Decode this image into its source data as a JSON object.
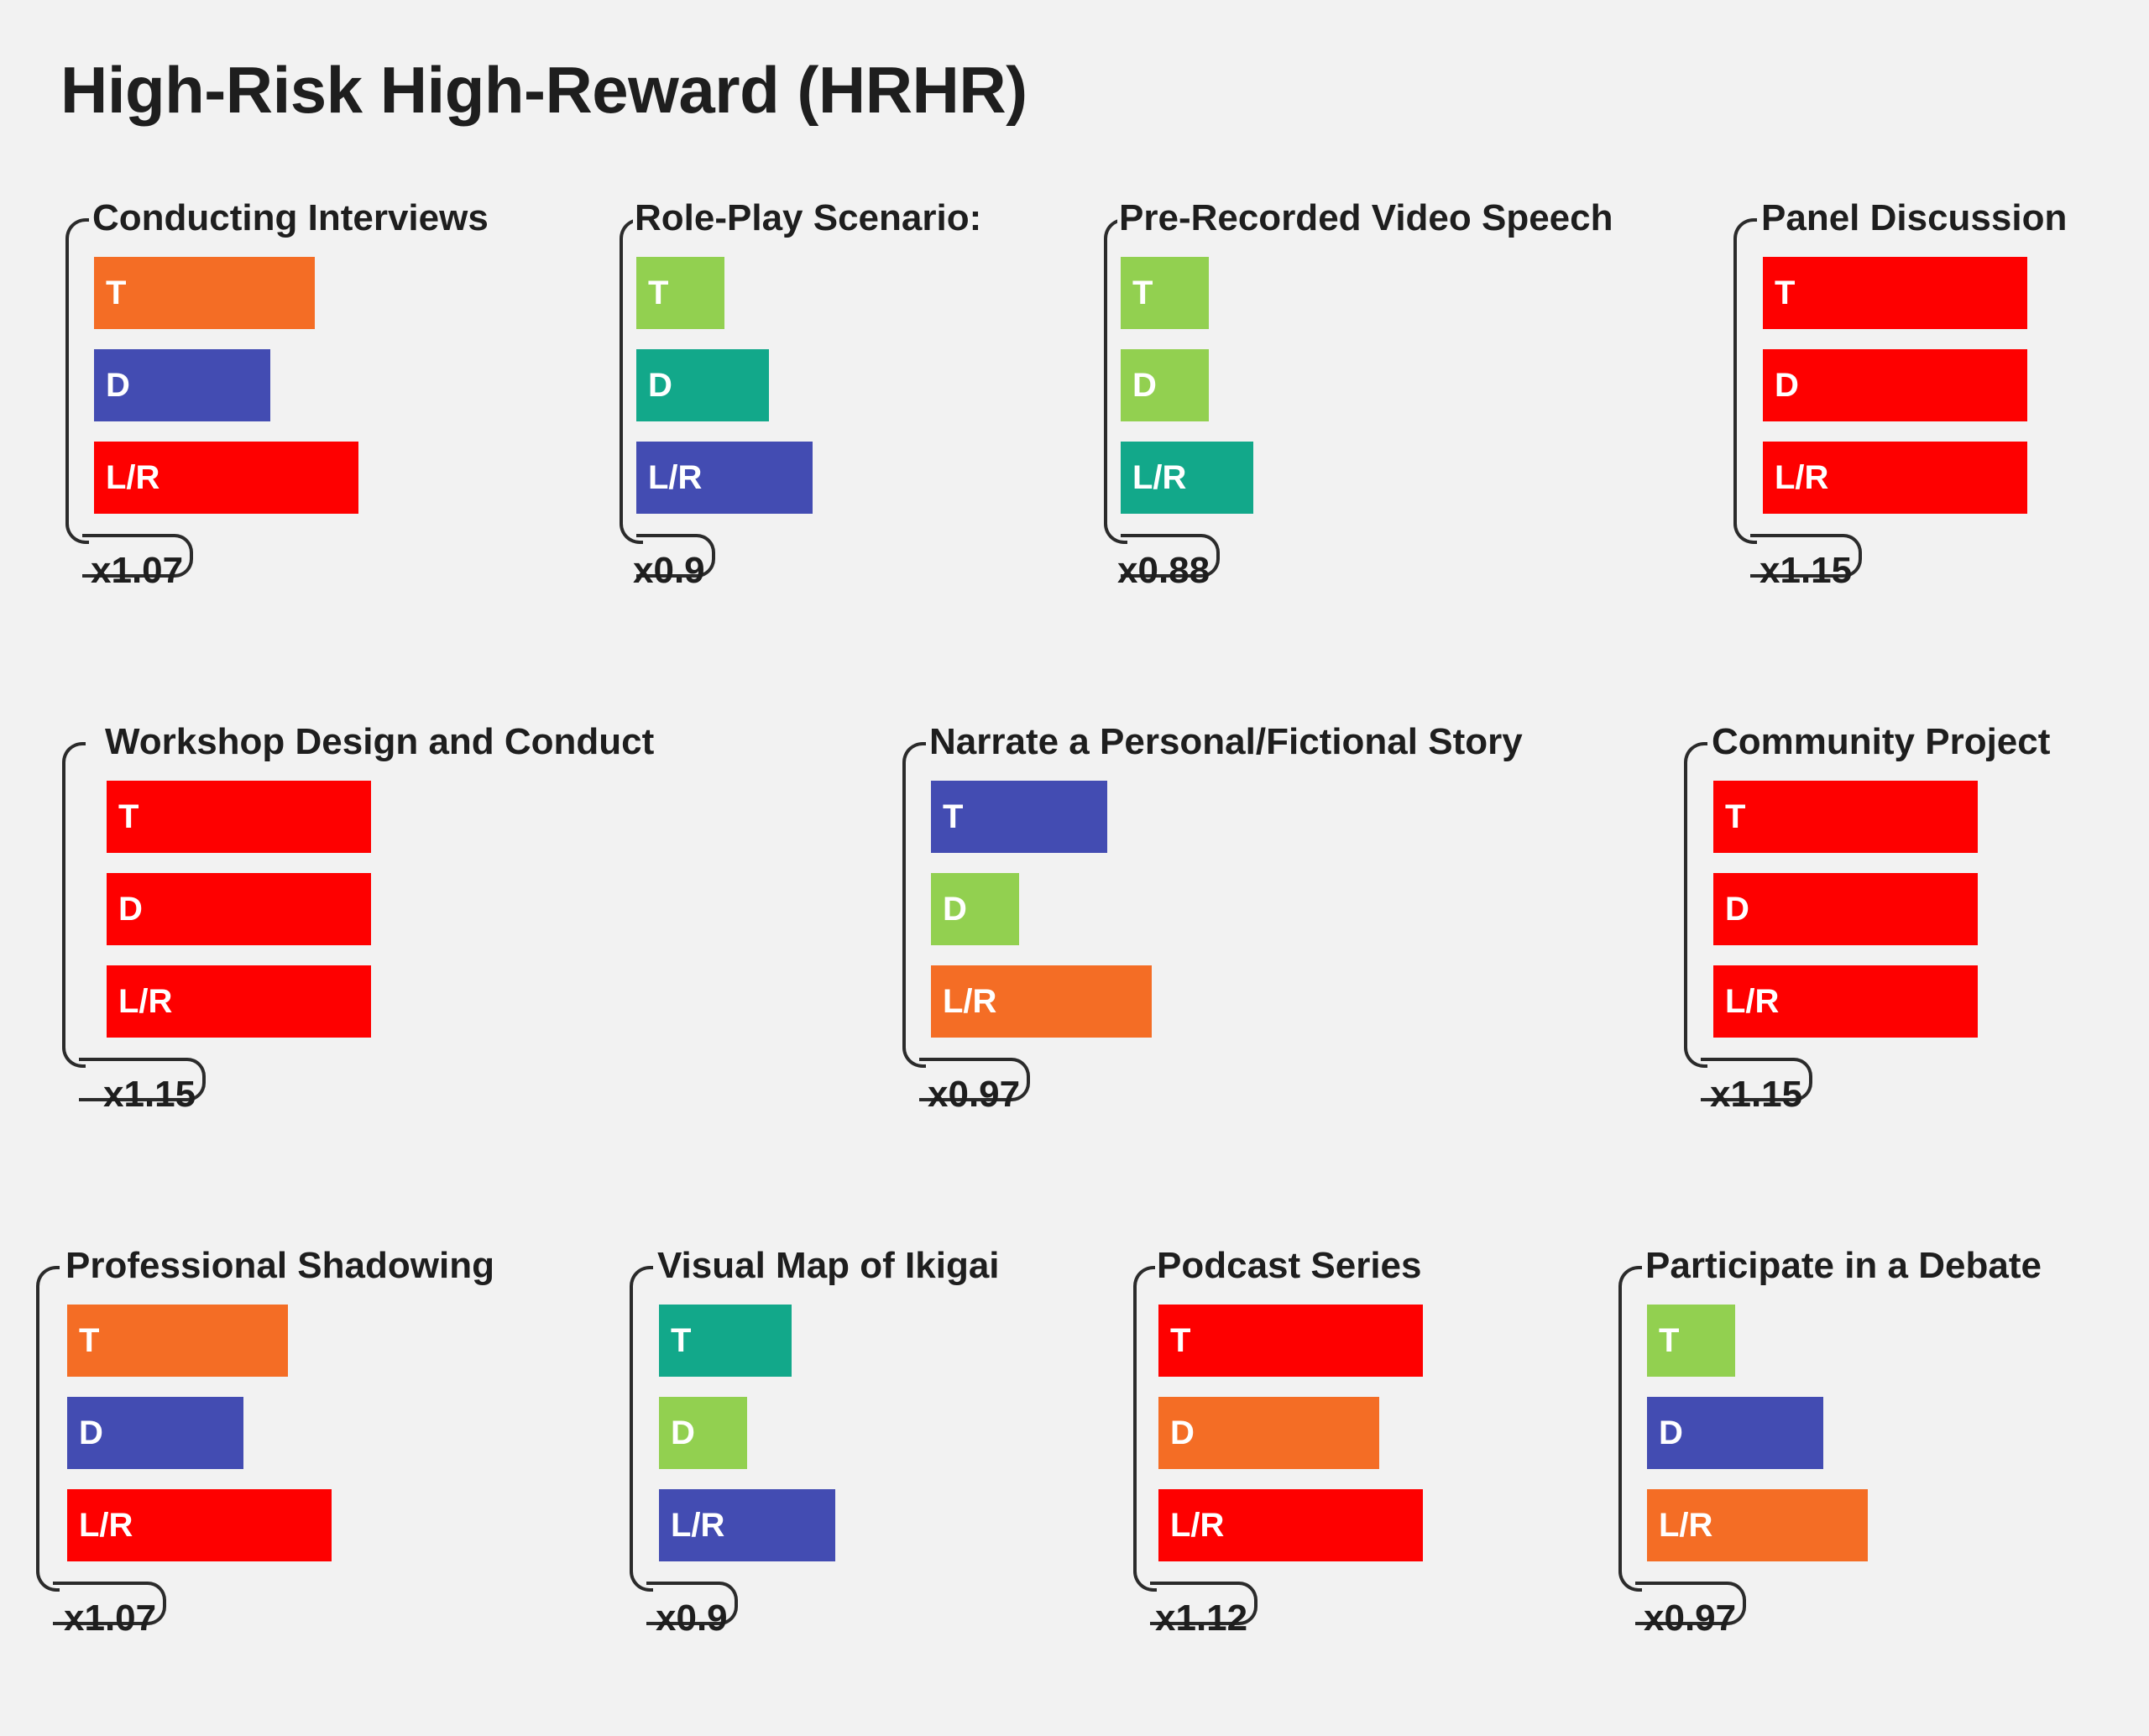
{
  "title": "High-Risk High-Reward (HRHR)",
  "colors": {
    "red": "#fe0000",
    "orange": "#f46d25",
    "indigo": "#434cb2",
    "teal": "#12a88a",
    "lime": "#92d050"
  },
  "cards": [
    {
      "title": "Conducting Interviews",
      "multiplier": "x1.07",
      "bars": [
        {
          "label": "T",
          "color": "orange",
          "level": 5
        },
        {
          "label": "D",
          "color": "indigo",
          "level": 4
        },
        {
          "label": "L/R",
          "color": "red",
          "level": 6
        }
      ]
    },
    {
      "title": "Role-Play Scenario:",
      "multiplier": "x0.9",
      "bars": [
        {
          "label": "T",
          "color": "lime",
          "level": 2
        },
        {
          "label": "D",
          "color": "teal",
          "level": 3
        },
        {
          "label": "L/R",
          "color": "indigo",
          "level": 4
        }
      ]
    },
    {
      "title": "Pre-Recorded Video Speech",
      "multiplier": "x0.88",
      "bars": [
        {
          "label": "T",
          "color": "lime",
          "level": 2
        },
        {
          "label": "D",
          "color": "lime",
          "level": 2
        },
        {
          "label": "L/R",
          "color": "teal",
          "level": 3
        }
      ]
    },
    {
      "title": "Panel Discussion",
      "multiplier": "x1.15",
      "bars": [
        {
          "label": "T",
          "color": "red",
          "level": 6
        },
        {
          "label": "D",
          "color": "red",
          "level": 6
        },
        {
          "label": "L/R",
          "color": "red",
          "level": 6
        }
      ]
    },
    {
      "title": "Workshop Design and Conduct",
      "multiplier": "x1.15",
      "bars": [
        {
          "label": "T",
          "color": "red",
          "level": 6
        },
        {
          "label": "D",
          "color": "red",
          "level": 6
        },
        {
          "label": "L/R",
          "color": "red",
          "level": 6
        }
      ]
    },
    {
      "title": "Narrate a Personal/Fictional Story",
      "multiplier": "x0.97",
      "bars": [
        {
          "label": "T",
          "color": "indigo",
          "level": 4
        },
        {
          "label": "D",
          "color": "lime",
          "level": 2
        },
        {
          "label": "L/R",
          "color": "orange",
          "level": 5
        }
      ]
    },
    {
      "title": "Community Project",
      "multiplier": "x1.15",
      "bars": [
        {
          "label": "T",
          "color": "red",
          "level": 6
        },
        {
          "label": "D",
          "color": "red",
          "level": 6
        },
        {
          "label": "L/R",
          "color": "red",
          "level": 6
        }
      ]
    },
    {
      "title": "Professional Shadowing",
      "multiplier": "x1.07",
      "bars": [
        {
          "label": "T",
          "color": "orange",
          "level": 5
        },
        {
          "label": "D",
          "color": "indigo",
          "level": 4
        },
        {
          "label": "L/R",
          "color": "red",
          "level": 6
        }
      ]
    },
    {
      "title": "Visual Map of Ikigai",
      "multiplier": "x0.9",
      "bars": [
        {
          "label": "T",
          "color": "teal",
          "level": 3
        },
        {
          "label": "D",
          "color": "lime",
          "level": 2
        },
        {
          "label": "L/R",
          "color": "indigo",
          "level": 4
        }
      ]
    },
    {
      "title": "Podcast Series",
      "multiplier": "x1.12",
      "bars": [
        {
          "label": "T",
          "color": "red",
          "level": 6
        },
        {
          "label": "D",
          "color": "orange",
          "level": 5
        },
        {
          "label": "L/R",
          "color": "red",
          "level": 6
        }
      ]
    },
    {
      "title": "Participate in a Debate",
      "multiplier": "x0.97",
      "bars": [
        {
          "label": "T",
          "color": "lime",
          "level": 2
        },
        {
          "label": "D",
          "color": "indigo",
          "level": 4
        },
        {
          "label": "L/R",
          "color": "orange",
          "level": 5
        }
      ]
    }
  ]
}
